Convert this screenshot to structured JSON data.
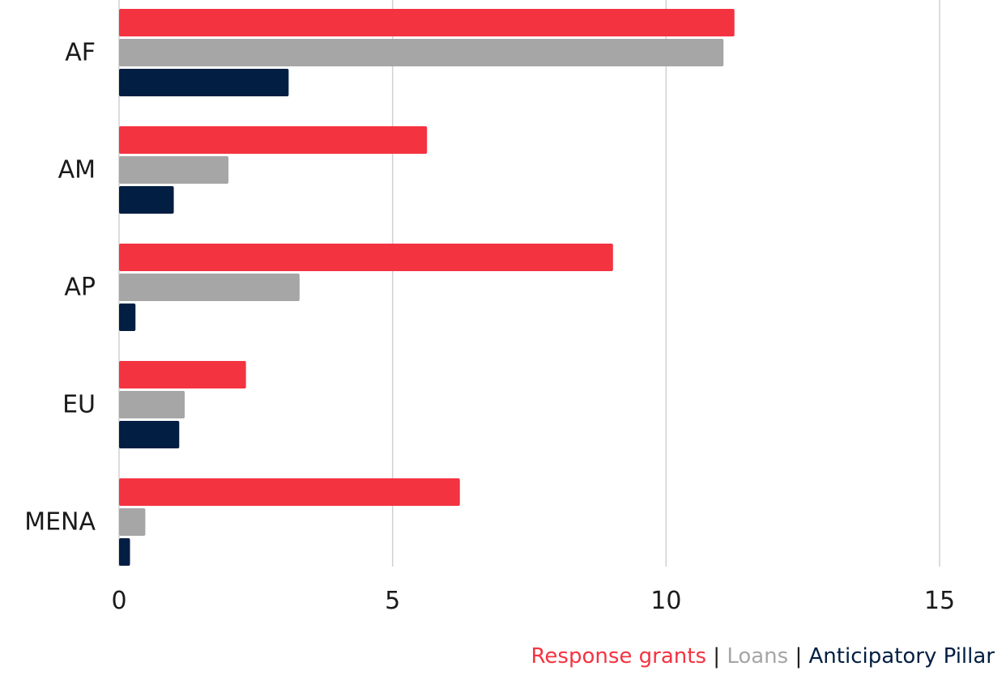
{
  "chart_data": {
    "type": "bar",
    "orientation": "horizontal",
    "categories": [
      "AF",
      "AM",
      "AP",
      "EU",
      "MENA"
    ],
    "series": [
      {
        "name": "Response  grants",
        "color": "#f43341",
        "values": [
          11.25,
          5.63,
          9.03,
          2.32,
          6.23
        ]
      },
      {
        "name": "Loans",
        "color": "#a6a6a6",
        "values": [
          11.05,
          2.0,
          3.3,
          1.2,
          0.48
        ]
      },
      {
        "name": "Anticipatory Pillar",
        "color": "#021e42",
        "values": [
          3.1,
          1.0,
          0.3,
          1.1,
          0.2
        ]
      }
    ],
    "xlim": [
      0,
      15
    ],
    "xticks": [
      0,
      5,
      10,
      15
    ],
    "grid": true,
    "legend_position": "bottom-right",
    "legend_separator": "|"
  }
}
